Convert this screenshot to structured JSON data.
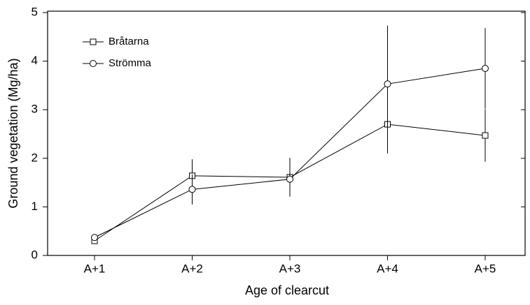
{
  "chart_data": {
    "type": "line",
    "x_label": "Age of clearcut",
    "y_label": "Ground vegetation (Mg/ha)",
    "categories": [
      "A+1",
      "A+2",
      "A+3",
      "A+4",
      "A+5"
    ],
    "series": [
      {
        "name": "Bråtarna",
        "marker": "square",
        "color": "#000000",
        "values": [
          0.3,
          1.64,
          1.61,
          2.7,
          2.47
        ],
        "errors": [
          0.05,
          0.34,
          0.4,
          0.6,
          0.54
        ]
      },
      {
        "name": "Strömma",
        "marker": "circle",
        "color": "#000000",
        "values": [
          0.37,
          1.36,
          1.57,
          3.53,
          3.85
        ],
        "errors": [
          0.05,
          0.31,
          0.35,
          1.2,
          0.83
        ]
      }
    ],
    "ylim": [
      0,
      5
    ],
    "yticks": [
      0,
      1,
      2,
      3,
      4,
      5
    ],
    "legend": "upper left"
  }
}
